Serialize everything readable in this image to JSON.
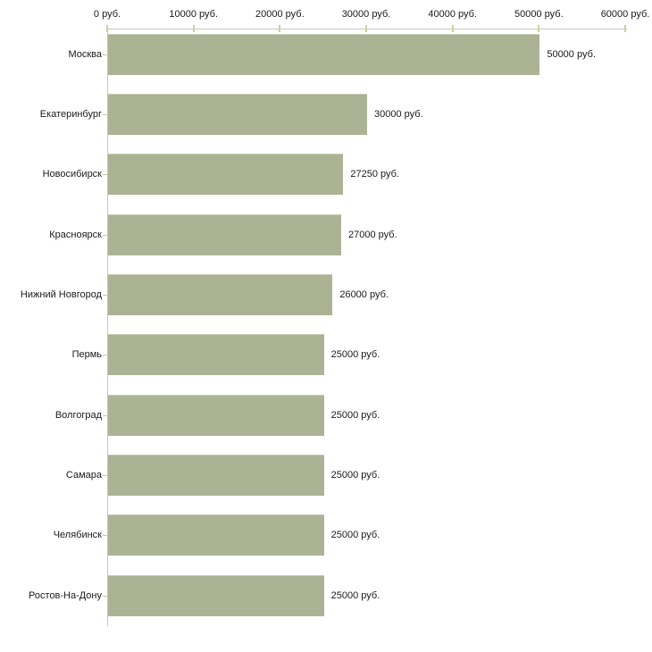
{
  "chart_data": {
    "type": "bar",
    "orientation": "horizontal",
    "title": "",
    "xlabel": "",
    "ylabel": "",
    "xlim": [
      0,
      60000
    ],
    "grid": "off",
    "legend": "none",
    "categories": [
      "Москва",
      "Екатеринбург",
      "Новосибирск",
      "Красноярск",
      "Нижний Новгород",
      "Пермь",
      "Волгоград",
      "Самара",
      "Челябинск",
      "Ростов-На-Дону"
    ],
    "values": [
      50000,
      30000,
      27250,
      27000,
      26000,
      25000,
      25000,
      25000,
      25000,
      25000
    ],
    "value_labels": [
      "50000 руб.",
      "30000 руб.",
      "27250 руб.",
      "27000 руб.",
      "26000 руб.",
      "25000 руб.",
      "25000 руб.",
      "25000 руб.",
      "25000 руб.",
      "25000 руб."
    ],
    "x_ticks": [
      0,
      10000,
      20000,
      30000,
      40000,
      50000,
      60000
    ],
    "x_tick_labels": [
      "0 руб.",
      "10000 руб.",
      "20000 руб.",
      "30000 руб.",
      "40000 руб.",
      "50000 руб.",
      "60000 руб."
    ],
    "colors": {
      "bar": "#abb394",
      "bar_top_edge": "#c5cbb1",
      "axis": "#c6c6c6",
      "tick": "#ccd09e",
      "category_tick": "#c6c9a4",
      "text": "#1a1a1a",
      "background": "#ffffff"
    }
  }
}
